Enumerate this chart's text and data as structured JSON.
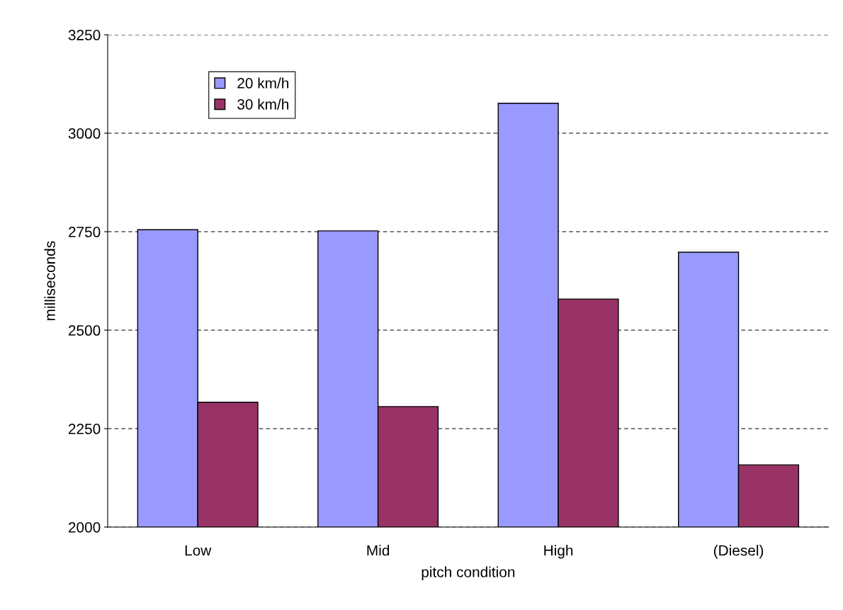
{
  "chart_data": {
    "type": "bar",
    "xlabel": "pitch condition",
    "ylabel": "milliseconds",
    "categories": [
      "Low",
      "Mid",
      "High",
      "(Diesel)"
    ],
    "series": [
      {
        "name": "20 km/h",
        "color": "#9999ff",
        "values": [
          2755,
          2752,
          3076,
          2698
        ]
      },
      {
        "name": "30 km/h",
        "color": "#993366",
        "values": [
          2317,
          2306,
          2579,
          2158
        ]
      }
    ],
    "ylim": [
      2000,
      3250
    ],
    "yticks": [
      2000,
      2250,
      2500,
      2750,
      3000,
      3250
    ],
    "grid": "y",
    "legend": "top left"
  }
}
